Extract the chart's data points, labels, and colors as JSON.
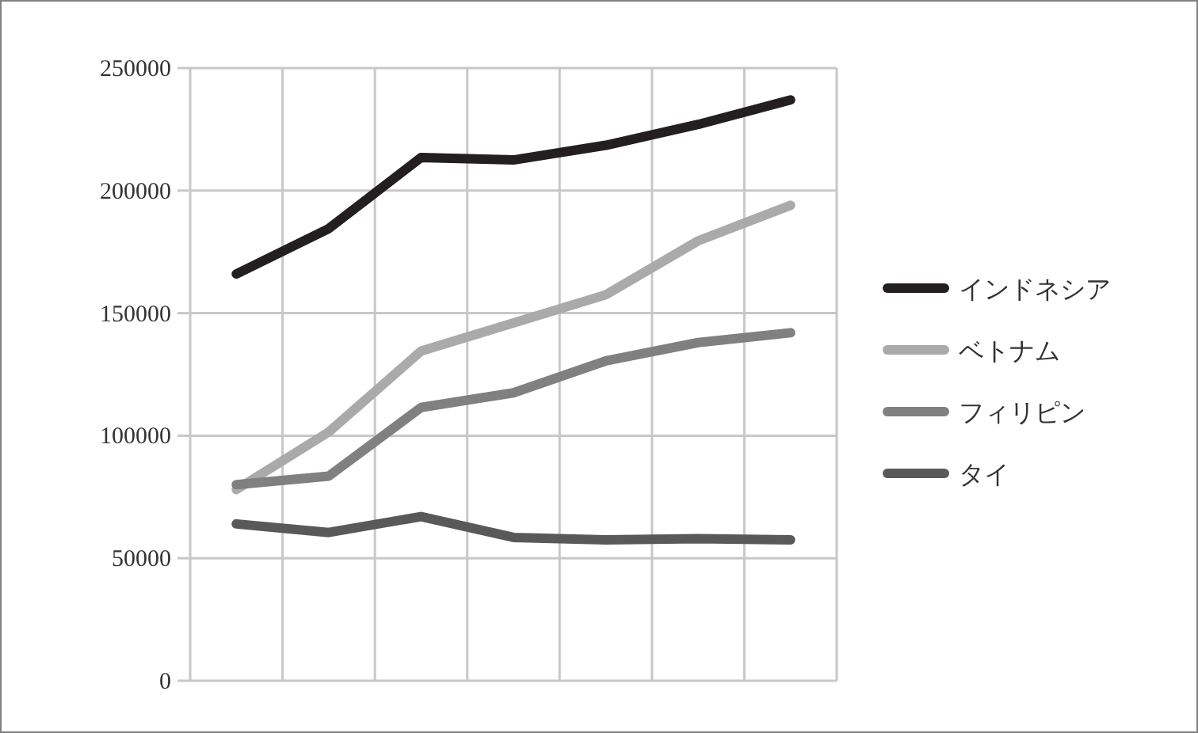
{
  "chart_data": {
    "type": "line",
    "categories": [
      null,
      null,
      null,
      null,
      null,
      null,
      null
    ],
    "series": [
      {
        "name": "インドネシア",
        "color": "#231f20",
        "values": [
          166000,
          184500,
          213500,
          212500,
          218500,
          227000,
          237000
        ]
      },
      {
        "name": "ベトナム",
        "color": "#aaaaaa",
        "values": [
          78000,
          101500,
          134500,
          146000,
          157500,
          179500,
          194000
        ]
      },
      {
        "name": "フィリピン",
        "color": "#808080",
        "values": [
          80000,
          83500,
          111500,
          117500,
          130500,
          138000,
          142000
        ]
      },
      {
        "name": "タイ",
        "color": "#595959",
        "values": [
          64000,
          60500,
          67000,
          58500,
          57500,
          58000,
          57500
        ]
      }
    ],
    "ylim": [
      0,
      250000
    ],
    "yticks": [
      0,
      50000,
      100000,
      150000,
      200000,
      250000
    ],
    "grid": true,
    "legend": "right",
    "marker": "none",
    "line_style": "solid"
  }
}
